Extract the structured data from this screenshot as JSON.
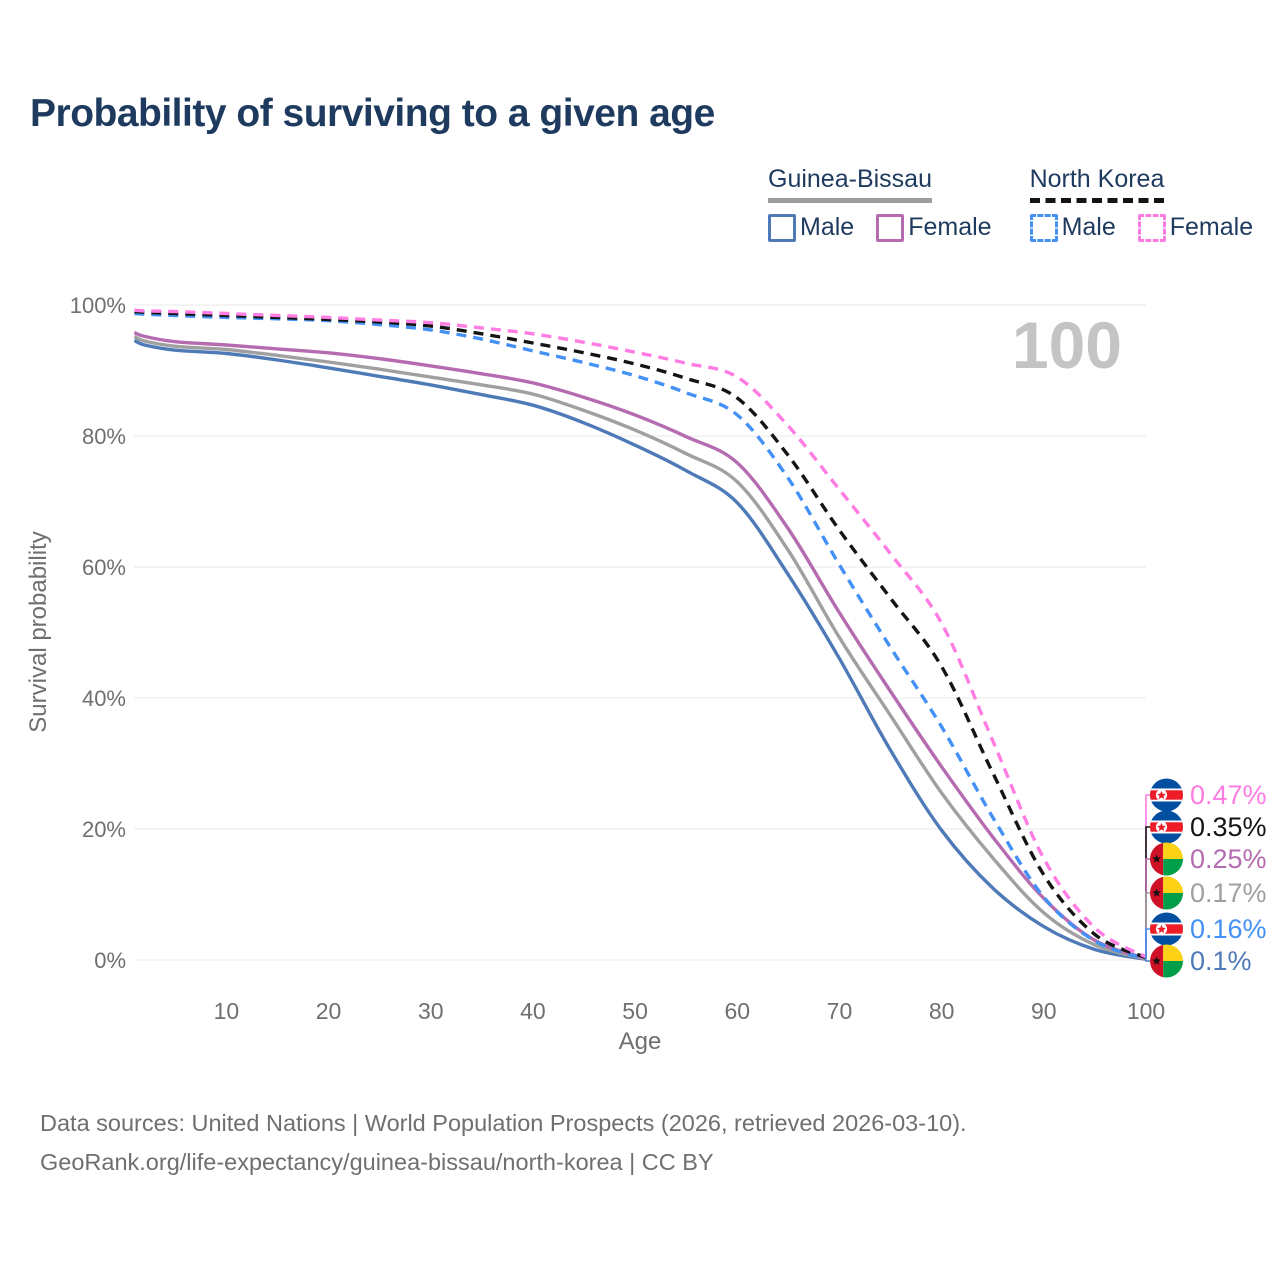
{
  "title": "Probability of surviving to a given age",
  "legend": {
    "groups": [
      {
        "label": "Guinea-Bissau",
        "line_style": "solid",
        "underline_color": "#9e9e9e",
        "items": [
          {
            "label": "Male",
            "color": "#4f7ab8"
          },
          {
            "label": "Female",
            "color": "#b56bb0"
          }
        ]
      },
      {
        "label": "North Korea",
        "line_style": "dashed",
        "underline_color": "#141414",
        "items": [
          {
            "label": "Male",
            "color": "#4491f5"
          },
          {
            "label": "Female",
            "color": "#ff7ce3"
          }
        ]
      }
    ]
  },
  "watermark_hovered_age": "100",
  "colors": {
    "title": "#1e3a5f",
    "axis_text": "#6f6f6f",
    "gridline": "#e8e8e8",
    "watermark": "#c4c4c4",
    "gb_male": "#4f7ab8",
    "gb_female": "#b56bb0",
    "gb_both": "#a0a0a0",
    "nk_male": "#4491f5",
    "nk_female": "#ff7ce3",
    "nk_both": "#141414"
  },
  "chart_data": {
    "type": "line",
    "title": "Probability of surviving to a given age",
    "xlabel": "Age",
    "ylabel": "Survival probability",
    "xlim": [
      1,
      100
    ],
    "ylim": [
      0,
      100
    ],
    "grid": "horizontal",
    "legend_position": "top-right",
    "x_ticks": [
      10,
      20,
      30,
      40,
      50,
      60,
      70,
      80,
      90,
      100
    ],
    "y_ticks": [
      {
        "value": 0,
        "label": "0%"
      },
      {
        "value": 20,
        "label": "20%"
      },
      {
        "value": 40,
        "label": "40%"
      },
      {
        "value": 60,
        "label": "60%"
      },
      {
        "value": 80,
        "label": "80%"
      },
      {
        "value": 100,
        "label": "100%"
      }
    ],
    "ages": [
      1,
      2,
      5,
      10,
      15,
      20,
      25,
      30,
      35,
      40,
      45,
      50,
      55,
      60,
      65,
      70,
      75,
      80,
      85,
      90,
      95,
      100
    ],
    "series": [
      {
        "name": "Guinea-Bissau Male",
        "country": "Guinea-Bissau",
        "sex": "Male",
        "color": "#4f7ab8",
        "dash": "solid",
        "flag": "guinea-bissau",
        "end_label": "0.1%",
        "values": [
          94.6,
          93.9,
          93.1,
          92.6,
          91.6,
          90.4,
          89.1,
          87.8,
          86.3,
          84.7,
          82.0,
          78.6,
          74.7,
          69.8,
          58.8,
          46.0,
          32.0,
          19.8,
          11.0,
          5.1,
          1.6,
          0.1
        ]
      },
      {
        "name": "Guinea-Bissau Both sexes",
        "country": "Guinea-Bissau",
        "sex": "Both",
        "color": "#a0a0a0",
        "dash": "solid",
        "flag": "guinea-bissau",
        "end_label": "0.17%",
        "values": [
          95.2,
          94.5,
          93.7,
          93.2,
          92.3,
          91.3,
          90.2,
          89.0,
          87.8,
          86.4,
          83.9,
          80.9,
          77.3,
          73.0,
          62.5,
          49.2,
          37.3,
          25.5,
          15.6,
          7.2,
          2.3,
          0.17
        ]
      },
      {
        "name": "Guinea-Bissau Female",
        "country": "Guinea-Bissau",
        "sex": "Female",
        "color": "#b56bb0",
        "dash": "solid",
        "flag": "guinea-bissau",
        "end_label": "0.25%",
        "values": [
          95.8,
          95.2,
          94.4,
          93.9,
          93.3,
          92.7,
          91.8,
          90.7,
          89.5,
          88.1,
          85.9,
          83.2,
          79.9,
          75.9,
          65.8,
          53.0,
          41.0,
          29.5,
          18.8,
          9.4,
          3.0,
          0.25
        ]
      },
      {
        "name": "North Korea Male",
        "country": "North Korea",
        "sex": "Male",
        "color": "#4491f5",
        "dash": "dashed",
        "flag": "north-korea",
        "end_label": "0.16%",
        "values": [
          98.7,
          98.6,
          98.4,
          98.1,
          97.9,
          97.6,
          97.0,
          96.2,
          94.8,
          93.0,
          91.2,
          89.2,
          86.6,
          83.2,
          73.5,
          60.3,
          47.7,
          35.6,
          21.8,
          9.6,
          2.9,
          0.16
        ]
      },
      {
        "name": "North Korea Both sexes",
        "country": "North Korea",
        "sex": "Both",
        "color": "#141414",
        "dash": "dashed",
        "flag": "north-korea",
        "end_label": "0.35%",
        "values": [
          99.0,
          98.9,
          98.7,
          98.4,
          98.1,
          97.8,
          97.4,
          96.8,
          95.6,
          94.2,
          92.7,
          91.0,
          88.8,
          85.8,
          77.0,
          65.6,
          55.2,
          44.8,
          28.6,
          13.0,
          3.9,
          0.35
        ]
      },
      {
        "name": "North Korea Female",
        "country": "North Korea",
        "sex": "Female",
        "color": "#ff7ce3",
        "dash": "dashed",
        "flag": "north-korea",
        "end_label": "0.47%",
        "values": [
          99.2,
          99.1,
          99.0,
          98.7,
          98.4,
          98.1,
          97.7,
          97.3,
          96.5,
          95.6,
          94.3,
          92.8,
          91.1,
          89.0,
          81.5,
          71.8,
          62.0,
          51.4,
          33.5,
          15.5,
          4.9,
          0.47
        ]
      }
    ]
  },
  "footer": {
    "line1": "Data sources: United Nations | World Population Prospects (2026, retrieved 2026-03-10).",
    "line2": "GeoRank.org/life-expectancy/guinea-bissau/north-korea | CC BY"
  }
}
